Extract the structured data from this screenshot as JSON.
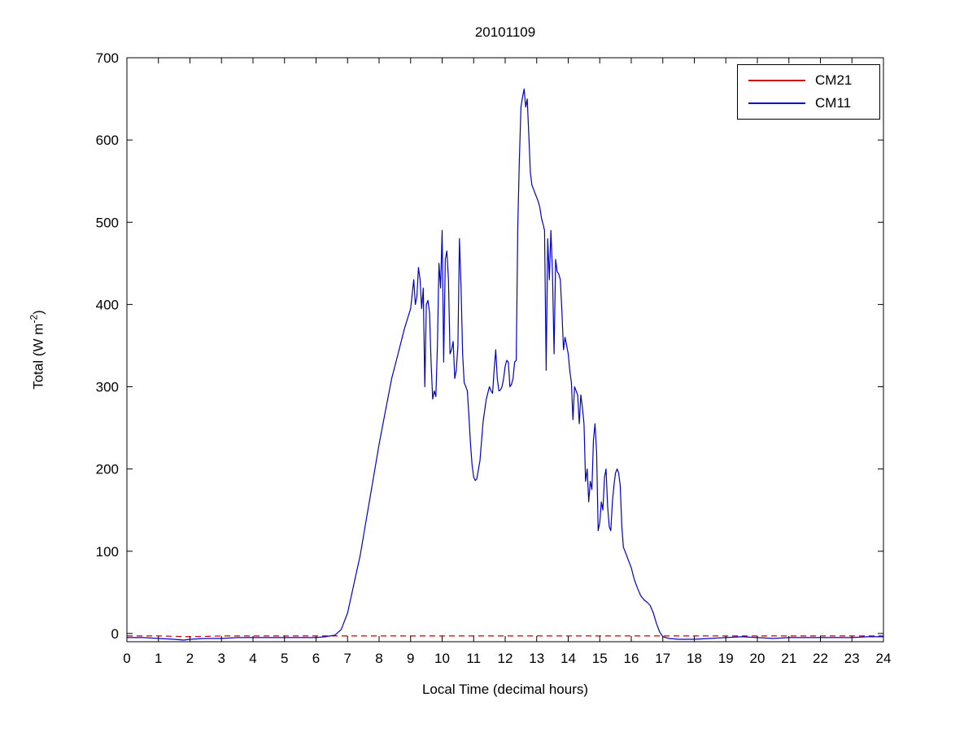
{
  "figure": {
    "background": "#ffffff"
  },
  "chart_data": {
    "type": "line",
    "title": "20101109",
    "xlabel": "Local Time (decimal hours)",
    "ylabel": {
      "main": "Total (W m",
      "sup": "-2",
      "end": ")"
    },
    "xlim": [
      0,
      24
    ],
    "ylim": [
      -10,
      700
    ],
    "x_ticks": [
      0,
      1,
      2,
      3,
      4,
      5,
      6,
      7,
      8,
      9,
      10,
      11,
      12,
      13,
      14,
      15,
      16,
      17,
      18,
      19,
      20,
      21,
      22,
      23,
      24
    ],
    "y_ticks": [
      0,
      100,
      200,
      300,
      400,
      500,
      600,
      700
    ],
    "grid": false,
    "legend_position": "top-right",
    "axis_color": "#000000",
    "series": [
      {
        "name": "CM21",
        "color": "#cc0000",
        "line_style": "dashed",
        "points": [
          [
            0,
            -3
          ],
          [
            1,
            -3
          ],
          [
            2,
            -4
          ],
          [
            3,
            -3
          ],
          [
            4,
            -3
          ],
          [
            5,
            -3
          ],
          [
            6,
            -3
          ],
          [
            7,
            -3
          ],
          [
            8,
            -3
          ],
          [
            9,
            -3
          ],
          [
            10,
            -3
          ],
          [
            11,
            -3
          ],
          [
            12,
            -3
          ],
          [
            13,
            -3
          ],
          [
            14,
            -3
          ],
          [
            15,
            -3
          ],
          [
            16,
            -3
          ],
          [
            17,
            -3
          ],
          [
            18,
            -3
          ],
          [
            19,
            -3
          ],
          [
            20,
            -3
          ],
          [
            21,
            -3
          ],
          [
            22,
            -3
          ],
          [
            23,
            -3
          ],
          [
            24,
            -3
          ]
        ]
      },
      {
        "name": "CM11",
        "color": "#0000cc",
        "line_style": "solid",
        "points": [
          [
            0,
            -5
          ],
          [
            0.5,
            -5
          ],
          [
            1,
            -6
          ],
          [
            1.5,
            -7
          ],
          [
            1.8,
            -8
          ],
          [
            2,
            -7
          ],
          [
            2.5,
            -6
          ],
          [
            3,
            -6
          ],
          [
            3.5,
            -5
          ],
          [
            4,
            -5
          ],
          [
            4.5,
            -5
          ],
          [
            5,
            -5
          ],
          [
            5.5,
            -5
          ],
          [
            6,
            -5
          ],
          [
            6.3,
            -4
          ],
          [
            6.6,
            -2
          ],
          [
            6.8,
            5
          ],
          [
            7,
            25
          ],
          [
            7.2,
            60
          ],
          [
            7.4,
            95
          ],
          [
            7.6,
            140
          ],
          [
            7.8,
            185
          ],
          [
            8,
            230
          ],
          [
            8.2,
            270
          ],
          [
            8.4,
            310
          ],
          [
            8.6,
            340
          ],
          [
            8.8,
            370
          ],
          [
            9,
            395
          ],
          [
            9.1,
            430
          ],
          [
            9.15,
            400
          ],
          [
            9.2,
            410
          ],
          [
            9.25,
            445
          ],
          [
            9.3,
            430
          ],
          [
            9.35,
            395
          ],
          [
            9.4,
            420
          ],
          [
            9.45,
            300
          ],
          [
            9.5,
            400
          ],
          [
            9.55,
            405
          ],
          [
            9.6,
            390
          ],
          [
            9.65,
            330
          ],
          [
            9.7,
            285
          ],
          [
            9.75,
            295
          ],
          [
            9.8,
            288
          ],
          [
            9.85,
            350
          ],
          [
            9.9,
            450
          ],
          [
            9.95,
            420
          ],
          [
            10,
            490
          ],
          [
            10.05,
            330
          ],
          [
            10.1,
            455
          ],
          [
            10.15,
            465
          ],
          [
            10.2,
            430
          ],
          [
            10.25,
            340
          ],
          [
            10.3,
            345
          ],
          [
            10.35,
            355
          ],
          [
            10.4,
            310
          ],
          [
            10.45,
            320
          ],
          [
            10.5,
            350
          ],
          [
            10.55,
            480
          ],
          [
            10.6,
            420
          ],
          [
            10.65,
            340
          ],
          [
            10.7,
            305
          ],
          [
            10.75,
            300
          ],
          [
            10.8,
            295
          ],
          [
            10.85,
            265
          ],
          [
            10.9,
            230
          ],
          [
            10.95,
            205
          ],
          [
            11,
            190
          ],
          [
            11.05,
            186
          ],
          [
            11.1,
            188
          ],
          [
            11.2,
            210
          ],
          [
            11.3,
            258
          ],
          [
            11.4,
            285
          ],
          [
            11.5,
            300
          ],
          [
            11.55,
            295
          ],
          [
            11.6,
            292
          ],
          [
            11.65,
            320
          ],
          [
            11.7,
            345
          ],
          [
            11.75,
            310
          ],
          [
            11.8,
            295
          ],
          [
            11.85,
            296
          ],
          [
            11.9,
            300
          ],
          [
            11.95,
            310
          ],
          [
            12,
            325
          ],
          [
            12.05,
            332
          ],
          [
            12.1,
            330
          ],
          [
            12.15,
            300
          ],
          [
            12.2,
            303
          ],
          [
            12.25,
            310
          ],
          [
            12.3,
            330
          ],
          [
            12.35,
            332
          ],
          [
            12.4,
            495
          ],
          [
            12.45,
            575
          ],
          [
            12.5,
            640
          ],
          [
            12.55,
            652
          ],
          [
            12.6,
            662
          ],
          [
            12.65,
            640
          ],
          [
            12.7,
            650
          ],
          [
            12.75,
            605
          ],
          [
            12.8,
            560
          ],
          [
            12.85,
            545
          ],
          [
            12.9,
            540
          ],
          [
            12.95,
            535
          ],
          [
            13,
            530
          ],
          [
            13.05,
            525
          ],
          [
            13.1,
            518
          ],
          [
            13.15,
            505
          ],
          [
            13.2,
            498
          ],
          [
            13.25,
            490
          ],
          [
            13.3,
            320
          ],
          [
            13.35,
            480
          ],
          [
            13.4,
            430
          ],
          [
            13.45,
            490
          ],
          [
            13.5,
            440
          ],
          [
            13.55,
            340
          ],
          [
            13.6,
            455
          ],
          [
            13.65,
            440
          ],
          [
            13.7,
            437
          ],
          [
            13.75,
            430
          ],
          [
            13.8,
            390
          ],
          [
            13.85,
            345
          ],
          [
            13.9,
            360
          ],
          [
            13.95,
            350
          ],
          [
            14,
            340
          ],
          [
            14.05,
            320
          ],
          [
            14.1,
            305
          ],
          [
            14.15,
            260
          ],
          [
            14.2,
            300
          ],
          [
            14.25,
            295
          ],
          [
            14.3,
            290
          ],
          [
            14.35,
            255
          ],
          [
            14.4,
            290
          ],
          [
            14.45,
            275
          ],
          [
            14.5,
            255
          ],
          [
            14.55,
            185
          ],
          [
            14.6,
            200
          ],
          [
            14.65,
            160
          ],
          [
            14.7,
            185
          ],
          [
            14.75,
            175
          ],
          [
            14.8,
            235
          ],
          [
            14.85,
            255
          ],
          [
            14.9,
            220
          ],
          [
            14.95,
            125
          ],
          [
            15,
            135
          ],
          [
            15.05,
            160
          ],
          [
            15.1,
            150
          ],
          [
            15.15,
            190
          ],
          [
            15.2,
            200
          ],
          [
            15.25,
            155
          ],
          [
            15.3,
            130
          ],
          [
            15.35,
            125
          ],
          [
            15.4,
            160
          ],
          [
            15.45,
            180
          ],
          [
            15.5,
            195
          ],
          [
            15.55,
            200
          ],
          [
            15.6,
            195
          ],
          [
            15.65,
            180
          ],
          [
            15.7,
            130
          ],
          [
            15.75,
            105
          ],
          [
            15.8,
            100
          ],
          [
            15.85,
            95
          ],
          [
            15.9,
            90
          ],
          [
            16,
            80
          ],
          [
            16.1,
            65
          ],
          [
            16.2,
            55
          ],
          [
            16.3,
            46
          ],
          [
            16.4,
            41
          ],
          [
            16.5,
            38
          ],
          [
            16.6,
            34
          ],
          [
            16.7,
            25
          ],
          [
            16.8,
            12
          ],
          [
            16.9,
            2
          ],
          [
            17,
            -4
          ],
          [
            17.2,
            -6
          ],
          [
            17.5,
            -7
          ],
          [
            18,
            -7
          ],
          [
            18.5,
            -6
          ],
          [
            19,
            -5
          ],
          [
            19.5,
            -4
          ],
          [
            20,
            -5
          ],
          [
            20.5,
            -6
          ],
          [
            21,
            -5
          ],
          [
            21.5,
            -5
          ],
          [
            22,
            -5
          ],
          [
            22.5,
            -5
          ],
          [
            23,
            -5
          ],
          [
            23.5,
            -4
          ],
          [
            24,
            -4
          ]
        ]
      }
    ]
  },
  "legend": {
    "items": [
      "CM21",
      "CM11"
    ]
  }
}
